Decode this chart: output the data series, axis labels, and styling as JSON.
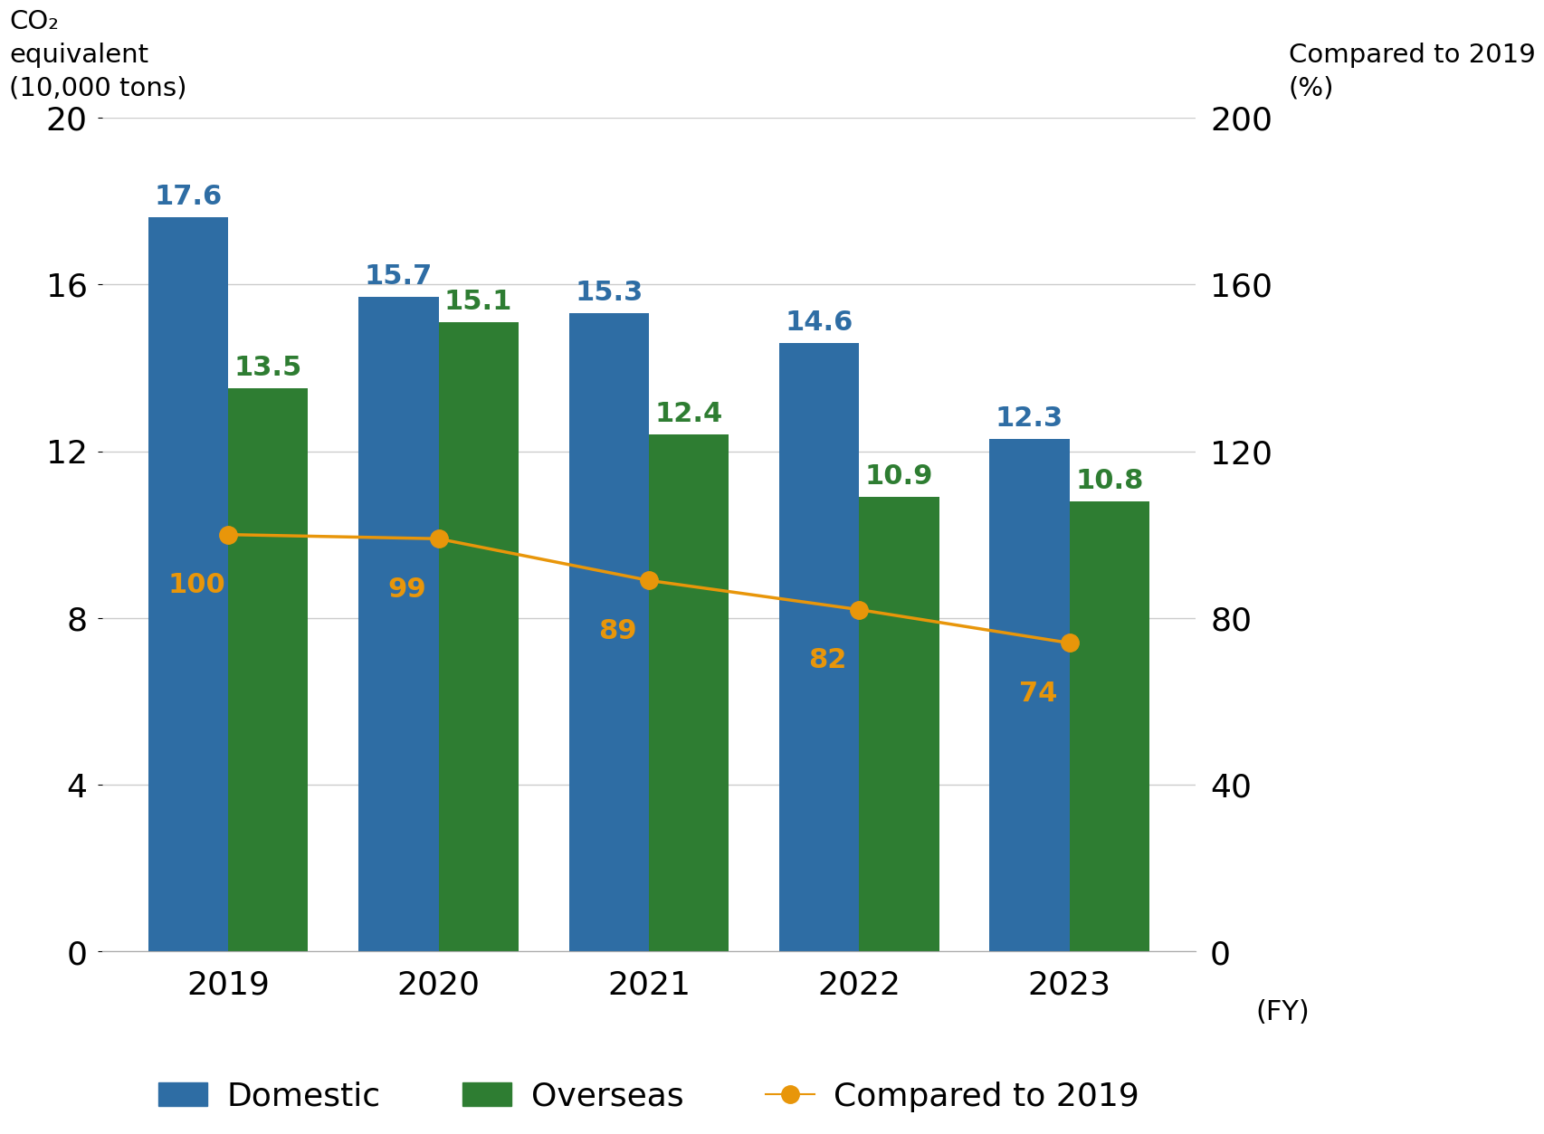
{
  "years": [
    2019,
    2020,
    2021,
    2022,
    2023
  ],
  "domestic": [
    17.6,
    15.7,
    15.3,
    14.6,
    12.3
  ],
  "overseas": [
    13.5,
    15.1,
    12.4,
    10.9,
    10.8
  ],
  "compared_to_2019": [
    100,
    99,
    89,
    82,
    74
  ],
  "domestic_color": "#2E6DA4",
  "overseas_color": "#2E7D32",
  "line_color": "#E8960A",
  "left_ylabel_line1": "CO₂",
  "left_ylabel_line2": "equivalent",
  "left_ylabel_line3": "(10,000 tons)",
  "right_ylabel_line1": "Compared to 2019",
  "right_ylabel_line2": "(%)",
  "xlabel": "(FY)",
  "ylim_left": [
    0,
    20
  ],
  "ylim_right": [
    0,
    200
  ],
  "yticks_left": [
    0,
    4,
    8,
    12,
    16,
    20
  ],
  "yticks_right": [
    0,
    40,
    80,
    120,
    160,
    200
  ],
  "bar_width": 0.38,
  "background_color": "#ffffff",
  "grid_color": "#cccccc",
  "domestic_label": "Domestic",
  "overseas_label": "Overseas",
  "line_label": "Compared to 2019"
}
